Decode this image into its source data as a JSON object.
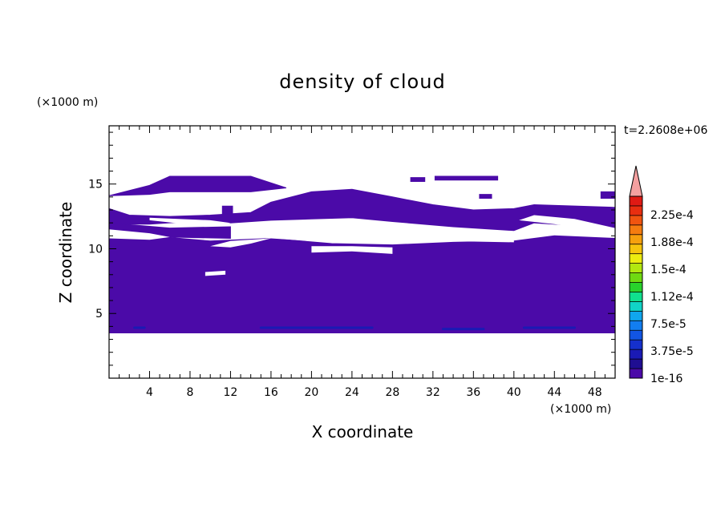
{
  "chart_data": {
    "type": "heatmap",
    "title": "density of cloud",
    "xlabel": "X coordinate",
    "ylabel": "Z coordinate",
    "x_unit_label": "(×1000 m)",
    "z_unit_label": "(×1000 m)",
    "time_label": "t=2.2608e+06",
    "xlim": [
      0,
      50
    ],
    "ylim": [
      0,
      19.5
    ],
    "x_ticks": [
      4,
      8,
      12,
      16,
      20,
      24,
      28,
      32,
      36,
      40,
      44,
      48
    ],
    "y_ticks": [
      5,
      10,
      15
    ],
    "colorbar": {
      "labels": [
        "1e-16",
        "3.75e-5",
        "7.5e-5",
        "1.12e-4",
        "1.5e-4",
        "1.88e-4",
        "2.25e-4"
      ],
      "colors": [
        "#4b0aa8",
        "#1f0e92",
        "#1a1ab4",
        "#1530cc",
        "#1255e4",
        "#127ef0",
        "#10a6ee",
        "#11d4c7",
        "#10e08e",
        "#28d22c",
        "#6fda12",
        "#b2e810",
        "#ecec10",
        "#f6c40e",
        "#f6a00e",
        "#f57c10",
        "#f05410",
        "#e82e10",
        "#e01a14"
      ],
      "extend_color": "#f4a0a0"
    },
    "dominant_color": "#4b0aa8",
    "regions": [
      {
        "name": "cloud-band-top-left",
        "polygon": [
          [
            0,
            14.1
          ],
          [
            4,
            14.9
          ],
          [
            6,
            15.6
          ],
          [
            14,
            15.6
          ],
          [
            17.5,
            14.7
          ],
          [
            14,
            14.4
          ],
          [
            6,
            14.4
          ],
          [
            4,
            14.2
          ],
          [
            0,
            14.1
          ]
        ]
      },
      {
        "name": "cloud-band-upper",
        "polygon": [
          [
            0,
            13.1
          ],
          [
            2,
            12.6
          ],
          [
            6,
            12.5
          ],
          [
            10,
            12.6
          ],
          [
            14,
            12.8
          ],
          [
            16,
            13.6
          ],
          [
            20,
            14.4
          ],
          [
            24,
            14.6
          ],
          [
            28,
            14.0
          ],
          [
            32,
            13.4
          ],
          [
            36,
            13.0
          ],
          [
            40,
            13.1
          ],
          [
            42,
            13.4
          ],
          [
            50,
            13.2
          ],
          [
            50,
            11.2
          ],
          [
            46,
            11.8
          ],
          [
            42,
            12.0
          ],
          [
            40,
            11.4
          ],
          [
            34,
            11.7
          ],
          [
            28,
            12.1
          ],
          [
            24,
            12.4
          ],
          [
            20,
            12.3
          ],
          [
            16,
            12.2
          ],
          [
            12,
            12.0
          ],
          [
            8,
            12.1
          ],
          [
            4,
            11.9
          ],
          [
            0,
            11.9
          ]
        ]
      },
      {
        "name": "cloud-band-middle",
        "polygon": [
          [
            0,
            11.5
          ],
          [
            4,
            11.0
          ],
          [
            10,
            10.6
          ],
          [
            16,
            10.8
          ],
          [
            22,
            10.4
          ],
          [
            28,
            10.3
          ],
          [
            34,
            10.5
          ],
          [
            40,
            10.6
          ],
          [
            44,
            11.0
          ],
          [
            50,
            10.8
          ],
          [
            50,
            3.5
          ],
          [
            0,
            3.5
          ]
        ]
      },
      {
        "name": "cloud-blob-left",
        "polygon": [
          [
            0,
            12.0
          ],
          [
            6,
            11.6
          ],
          [
            12,
            11.7
          ],
          [
            12,
            10.8
          ],
          [
            6,
            10.9
          ],
          [
            0,
            11.0
          ]
        ]
      },
      {
        "name": "cloud-patch-31",
        "polygon": [
          [
            29.8,
            15.5
          ],
          [
            31.2,
            15.5
          ],
          [
            31.2,
            15.2
          ],
          [
            29.8,
            15.2
          ]
        ]
      },
      {
        "name": "cloud-patch-34",
        "polygon": [
          [
            32.2,
            15.6
          ],
          [
            38.4,
            15.6
          ],
          [
            38.4,
            15.3
          ],
          [
            32.2,
            15.3
          ]
        ]
      },
      {
        "name": "cloud-patch-37",
        "polygon": [
          [
            36.6,
            14.2
          ],
          [
            37.8,
            14.2
          ],
          [
            37.8,
            13.9
          ],
          [
            36.6,
            13.9
          ]
        ]
      },
      {
        "name": "cloud-patch-12",
        "polygon": [
          [
            11.2,
            13.3
          ],
          [
            12.2,
            13.3
          ],
          [
            12.2,
            12.7
          ],
          [
            11.2,
            12.7
          ]
        ]
      },
      {
        "name": "cloud-patch-49",
        "polygon": [
          [
            48.6,
            14.4
          ],
          [
            50,
            14.4
          ],
          [
            50,
            13.9
          ],
          [
            48.6,
            13.9
          ]
        ]
      }
    ],
    "holes": [
      {
        "name": "gap-12",
        "polygon": [
          [
            14,
            10.9
          ],
          [
            20,
            10.6
          ],
          [
            24,
            10.5
          ],
          [
            28,
            10.4
          ],
          [
            28,
            10.9
          ],
          [
            22,
            11.4
          ],
          [
            16,
            11.6
          ],
          [
            14,
            11.2
          ]
        ]
      },
      {
        "name": "gap-9",
        "polygon": [
          [
            9.5,
            8.2
          ],
          [
            11.5,
            8.3
          ],
          [
            11.5,
            8.0
          ],
          [
            9.5,
            7.9
          ]
        ]
      },
      {
        "name": "gap-18",
        "polygon": [
          [
            28.8,
            12.0
          ],
          [
            33,
            11.6
          ],
          [
            38,
            11.3
          ],
          [
            40,
            11.0
          ],
          [
            40,
            10.5
          ],
          [
            33,
            10.6
          ],
          [
            29,
            10.9
          ]
        ]
      },
      {
        "name": "gap-left-12",
        "polygon": [
          [
            4,
            12.2
          ],
          [
            10,
            11.7
          ],
          [
            12,
            12.0
          ],
          [
            10,
            12.2
          ],
          [
            4,
            12.4
          ]
        ]
      },
      {
        "name": "gap-right-12",
        "polygon": [
          [
            40.5,
            12.2
          ],
          [
            44,
            11.9
          ],
          [
            48,
            11.4
          ],
          [
            50,
            11.0
          ],
          [
            50,
            11.6
          ],
          [
            46,
            12.3
          ],
          [
            42,
            12.6
          ]
        ]
      },
      {
        "name": "gap-mid-9",
        "polygon": [
          [
            20,
            9.7
          ],
          [
            24,
            9.8
          ],
          [
            28,
            9.6
          ],
          [
            28,
            10.1
          ],
          [
            24,
            10.2
          ],
          [
            20,
            10.2
          ]
        ]
      },
      {
        "name": "gap-left-10",
        "polygon": [
          [
            0,
            11.5
          ],
          [
            4,
            11.2
          ],
          [
            6,
            10.9
          ],
          [
            4,
            10.7
          ],
          [
            0,
            10.8
          ]
        ]
      },
      {
        "name": "gap-mid-10",
        "polygon": [
          [
            12,
            10.1
          ],
          [
            14,
            10.4
          ],
          [
            16,
            10.8
          ],
          [
            12,
            10.6
          ],
          [
            10,
            10.2
          ]
        ]
      }
    ],
    "streaks": [
      {
        "name": "streak-3",
        "x1": 2.5,
        "x2": 3.5,
        "y": 3.9
      },
      {
        "name": "streak-18",
        "x1": 15,
        "x2": 26,
        "y": 3.9
      },
      {
        "name": "streak-33",
        "x1": 33,
        "x2": 37,
        "y": 3.8
      },
      {
        "name": "streak-43",
        "x1": 41,
        "x2": 46,
        "y": 3.9
      }
    ]
  }
}
